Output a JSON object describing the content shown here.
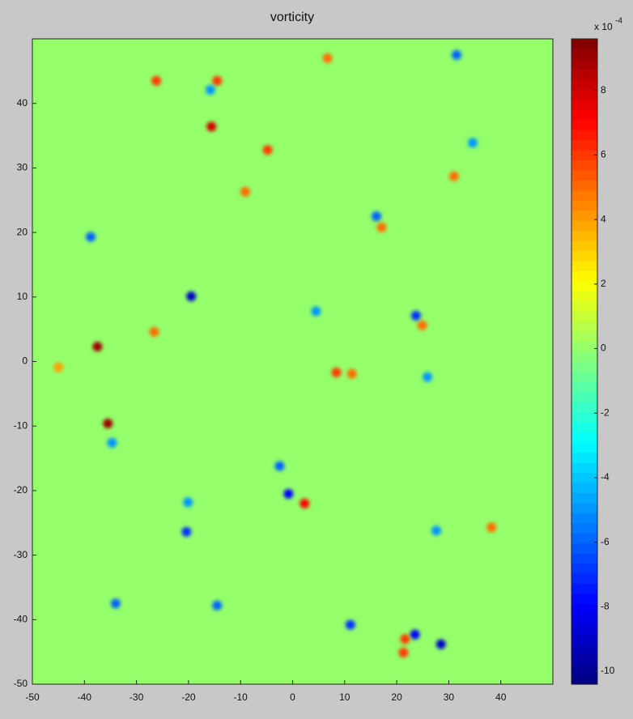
{
  "chart_data": {
    "type": "heatmap",
    "title": "vorticity",
    "xlim": [
      -50,
      50
    ],
    "xticks": [
      -50,
      -40,
      -30,
      -20,
      -10,
      0,
      10,
      20,
      30,
      40
    ],
    "ylim": [
      -50,
      50
    ],
    "yticks": [
      -50,
      -40,
      -30,
      -20,
      -10,
      0,
      10,
      20,
      30,
      40
    ],
    "x": [
      -37.5,
      -35.5,
      -15.6,
      -19.5,
      2.3,
      -0.8,
      -2.5,
      28.5,
      23.5,
      21.6,
      21.3,
      23.7,
      24.9,
      16.1,
      17.1,
      11.1,
      -20.4,
      -20.1,
      -14.5,
      -34,
      -38.8,
      31.5,
      34.6,
      31,
      8.4,
      11.4,
      4.5,
      -26.2,
      -14.5,
      -15.8,
      -4.8,
      -9.1,
      -26.6,
      38.2,
      27.6,
      25.9,
      -34.7,
      6.7,
      -45
    ],
    "y": [
      2.3,
      -9.6,
      36.4,
      10.1,
      -22,
      -20.5,
      -16.2,
      -43.8,
      -42.3,
      -43,
      -45.1,
      7.1,
      5.6,
      22.5,
      20.8,
      -40.8,
      -26.4,
      -21.8,
      -37.8,
      -37.5,
      19.3,
      47.5,
      33.9,
      28.7,
      -1.7,
      -1.9,
      7.8,
      43.5,
      43.5,
      42.1,
      32.8,
      26.3,
      4.6,
      -25.7,
      -26.2,
      -2.4,
      -12.6,
      47,
      -0.9
    ],
    "values": [
      9,
      9,
      8,
      -9,
      7,
      -8,
      -6,
      -9,
      -8,
      6,
      6,
      -7,
      5,
      -6,
      5,
      -7,
      -7,
      -5,
      -6,
      -6,
      -6,
      -6,
      -5,
      5,
      6,
      5,
      -5,
      6,
      6,
      -5,
      6,
      5,
      5,
      5,
      -5,
      -5,
      -5,
      5,
      4
    ],
    "colormap": "jet",
    "clim": [
      -10.4,
      9.6
    ],
    "cticks": [
      -10,
      -8,
      -6,
      -4,
      -2,
      0,
      2,
      4,
      6,
      8
    ],
    "colorbar_multiplier": "x 10",
    "colorbar_exponent": "-4"
  }
}
